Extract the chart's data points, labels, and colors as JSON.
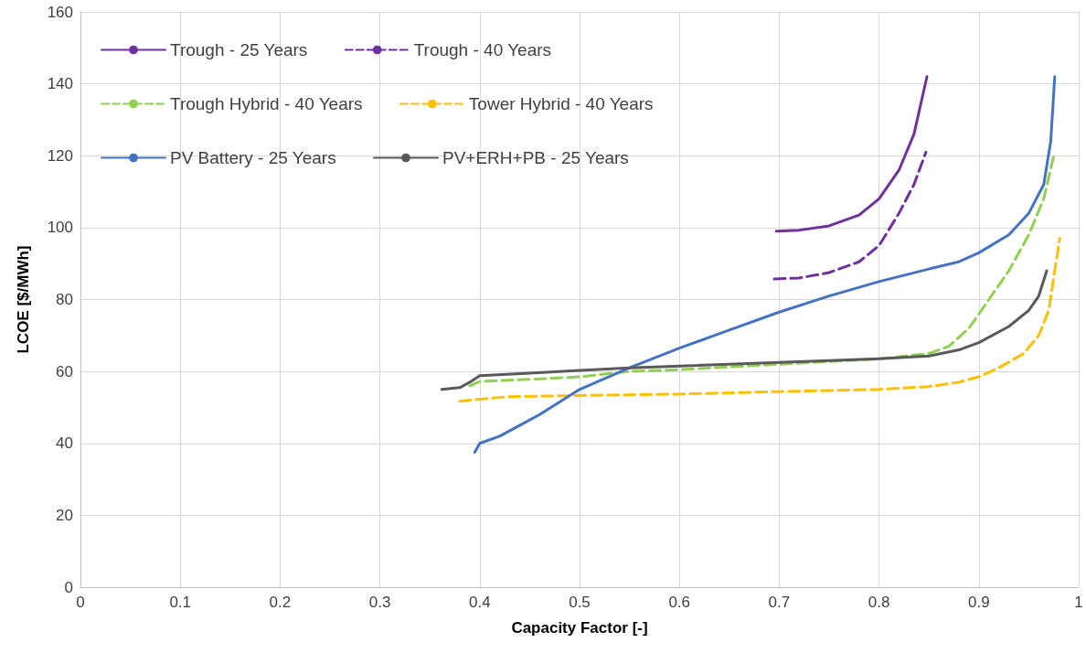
{
  "chart_data": {
    "type": "line",
    "xlabel": "Capacity Factor [-]",
    "ylabel": "LCOE [$/MWh]",
    "xlim": [
      0,
      1
    ],
    "xticks": [
      0,
      0.1,
      0.2,
      0.3,
      0.4,
      0.5,
      0.6,
      0.7,
      0.8,
      0.9,
      1
    ],
    "ylim": [
      0,
      160
    ],
    "yticks": [
      0,
      20,
      40,
      60,
      80,
      100,
      120,
      140,
      160
    ],
    "grid": true,
    "legend": "top left",
    "marker": "none",
    "series": [
      {
        "name": "Trough - 25 Years",
        "color": "#7030a0",
        "line_style": "solid",
        "x": [
          0.697,
          0.72,
          0.75,
          0.78,
          0.8,
          0.82,
          0.835,
          0.848
        ],
        "values": [
          99,
          99.3,
          100.5,
          103.5,
          108,
          116,
          126,
          142
        ]
      },
      {
        "name": "Trough - 40 Years",
        "color": "#7030a0",
        "line_style": "dashed",
        "x": [
          0.695,
          0.72,
          0.75,
          0.78,
          0.8,
          0.82,
          0.835,
          0.847
        ],
        "values": [
          85.7,
          86,
          87.5,
          90.5,
          95,
          104,
          112,
          121
        ]
      },
      {
        "name": "Trough Hybrid - 40 Years",
        "color": "#92d050",
        "line_style": "dashed",
        "x": [
          0.39,
          0.4,
          0.45,
          0.5,
          0.55,
          0.6,
          0.7,
          0.8,
          0.85,
          0.87,
          0.89,
          0.91,
          0.93,
          0.95,
          0.965,
          0.975
        ],
        "values": [
          56,
          57.2,
          57.8,
          58.5,
          60,
          60.5,
          62,
          63.5,
          65,
          67,
          72,
          80,
          88,
          98,
          108,
          120
        ]
      },
      {
        "name": "Tower Hybrid - 40 Years",
        "color": "#ffc000",
        "line_style": "dashed",
        "x": [
          0.38,
          0.4,
          0.43,
          0.5,
          0.6,
          0.7,
          0.8,
          0.85,
          0.88,
          0.9,
          0.92,
          0.945,
          0.96,
          0.97,
          0.976,
          0.981
        ],
        "values": [
          51.7,
          52.3,
          53,
          53.3,
          53.7,
          54.4,
          55,
          55.8,
          57,
          58.5,
          61,
          65,
          70,
          77,
          88,
          97
        ]
      },
      {
        "name": "PV Battery - 25 Years",
        "color": "#4472c4",
        "line_style": "solid",
        "x": [
          0.395,
          0.4,
          0.42,
          0.44,
          0.46,
          0.5,
          0.55,
          0.6,
          0.65,
          0.7,
          0.75,
          0.8,
          0.85,
          0.88,
          0.9,
          0.93,
          0.95,
          0.965,
          0.972,
          0.976
        ],
        "values": [
          37.5,
          40,
          42,
          45,
          48,
          55,
          61,
          66.5,
          71.5,
          76.5,
          81,
          85,
          88.5,
          90.5,
          93,
          98,
          104,
          112,
          124,
          142
        ]
      },
      {
        "name": "PV+ERH+PB - 25 Years",
        "color": "#595959",
        "line_style": "solid",
        "x": [
          0.362,
          0.38,
          0.39,
          0.4,
          0.45,
          0.5,
          0.55,
          0.6,
          0.7,
          0.8,
          0.85,
          0.88,
          0.9,
          0.93,
          0.95,
          0.96,
          0.968
        ],
        "values": [
          55,
          55.5,
          57,
          58.8,
          59.5,
          60.3,
          61,
          61.5,
          62.5,
          63.5,
          64.3,
          66,
          68,
          72.5,
          77,
          81,
          88
        ]
      }
    ]
  }
}
